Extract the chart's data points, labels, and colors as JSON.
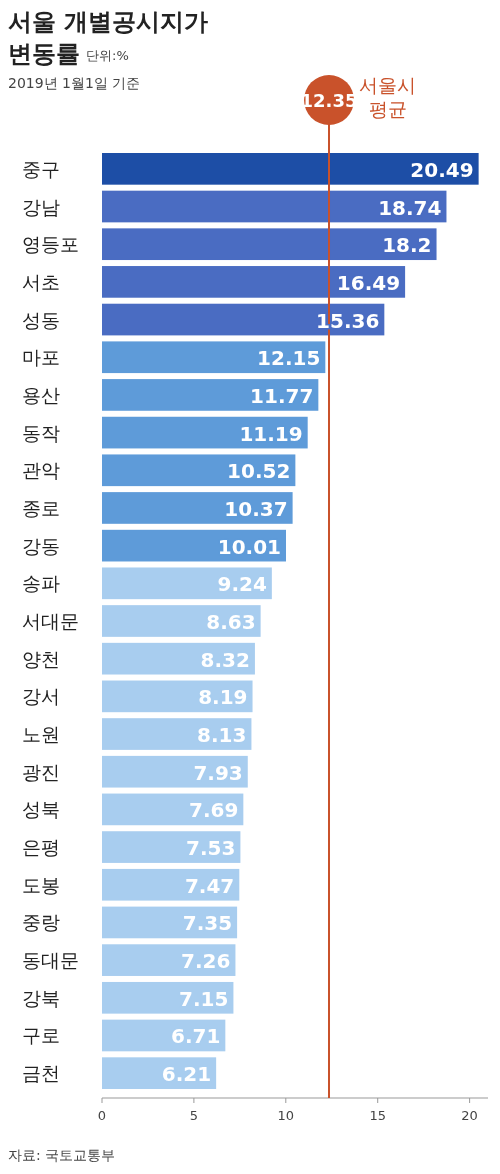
{
  "chart_data": {
    "type": "bar",
    "orientation": "horizontal",
    "title": "서울 개별공시지가 변동률",
    "subtitle": "2019년 1월1일 기준",
    "annotations": [
      "단위:%",
      "자료: 국토교통부",
      "12.35"
    ],
    "categories": [
      "중구",
      "강남",
      "영등포",
      "서초",
      "성동",
      "마포",
      "용산",
      "동작",
      "관악",
      "종로",
      "강동",
      "송파",
      "서대문",
      "양천",
      "강서",
      "노원",
      "광진",
      "성북",
      "은평",
      "도봉",
      "중랑",
      "동대문",
      "강북",
      "구로",
      "금천"
    ],
    "values": [
      20.49,
      18.74,
      18.2,
      16.49,
      15.36,
      12.15,
      11.77,
      11.19,
      10.52,
      10.37,
      10.01,
      9.24,
      8.63,
      8.32,
      8.19,
      8.13,
      7.93,
      7.69,
      7.53,
      7.47,
      7.35,
      7.26,
      7.15,
      6.71,
      6.21
    ],
    "value_labels": [
      "20.49",
      "18.74",
      "18.2",
      "16.49",
      "15.36",
      "12.15",
      "11.77",
      "11.19",
      "10.52",
      "10.37",
      "10.01",
      "9.24",
      "8.63",
      "8.32",
      "8.19",
      "8.13",
      "7.93",
      "7.69",
      "7.53",
      "7.47",
      "7.35",
      "7.26",
      "7.15",
      "6.71",
      "6.21"
    ],
    "colors": [
      "#1d4ea6",
      "#4a6cc2",
      "#4a6cc2",
      "#4a6cc2",
      "#4a6cc2",
      "#5e9bd9",
      "#5e9bd9",
      "#5e9bd9",
      "#5e9bd9",
      "#5e9bd9",
      "#5e9bd9",
      "#a8cdef",
      "#a8cdef",
      "#a8cdef",
      "#a8cdef",
      "#a8cdef",
      "#a8cdef",
      "#a8cdef",
      "#a8cdef",
      "#a8cdef",
      "#a8cdef",
      "#a8cdef",
      "#a8cdef",
      "#a8cdef",
      "#a8cdef"
    ],
    "xlim": [
      0,
      21
    ],
    "xticks": [
      0,
      5,
      10,
      15,
      20
    ],
    "ref_lines": [
      {
        "axis": "x",
        "value": 12.35,
        "label": "서울시 평균",
        "color": "#c9522b"
      }
    ],
    "grid": false
  }
}
